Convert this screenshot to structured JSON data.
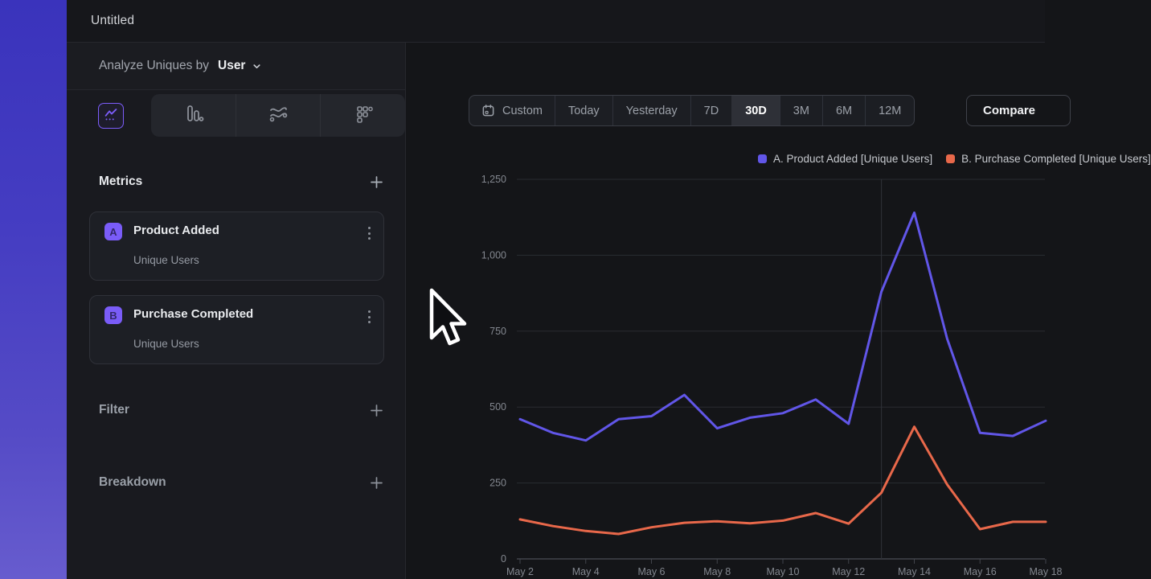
{
  "window": {
    "title": "Untitled"
  },
  "sidebar": {
    "analyze": {
      "label": "Analyze Uniques by",
      "value": "User"
    },
    "chart_type_tabs": [
      {
        "icon": "line-chart-icon",
        "selected": true
      },
      {
        "icon": "bar-chart-icon",
        "selected": false
      },
      {
        "icon": "flows-icon",
        "selected": false
      },
      {
        "icon": "retention-grid-icon",
        "selected": false
      }
    ],
    "metrics": {
      "heading": "Metrics",
      "items": [
        {
          "badge": "A",
          "name": "Product Added",
          "measure": "Unique Users"
        },
        {
          "badge": "B",
          "name": "Purchase Completed",
          "measure": "Unique Users"
        }
      ]
    },
    "filter": {
      "label": "Filter"
    },
    "breakdown": {
      "label": "Breakdown"
    }
  },
  "toolbar": {
    "ranges": [
      "Custom",
      "Today",
      "Yesterday",
      "7D",
      "30D",
      "3M",
      "6M",
      "12M"
    ],
    "selected_range": "30D",
    "compare_label": "Compare"
  },
  "chart_data": {
    "type": "line",
    "x": [
      "May 2",
      "May 3",
      "May 4",
      "May 5",
      "May 6",
      "May 7",
      "May 8",
      "May 9",
      "May 10",
      "May 11",
      "May 12",
      "May 13",
      "May 14",
      "May 15",
      "May 16",
      "May 17",
      "May 18"
    ],
    "series": [
      {
        "name": "A. Product Added [Unique Users]",
        "color": "#6156e8",
        "values": [
          460,
          415,
          390,
          460,
          470,
          540,
          430,
          465,
          480,
          525,
          445,
          880,
          1140,
          725,
          415,
          405,
          455
        ]
      },
      {
        "name": "B. Purchase Completed [Unique Users]",
        "color": "#e8684a",
        "values": [
          130,
          108,
          92,
          82,
          104,
          119,
          124,
          117,
          126,
          151,
          116,
          218,
          435,
          245,
          98,
          122,
          122
        ]
      }
    ],
    "ylim": [
      0,
      1250
    ],
    "yticks": [
      {
        "v": 0,
        "label": "0"
      },
      {
        "v": 250,
        "label": "250"
      },
      {
        "v": 500,
        "label": "500"
      },
      {
        "v": 750,
        "label": "750"
      },
      {
        "v": 1000,
        "label": "1,000"
      },
      {
        "v": 1250,
        "label": "1,250"
      }
    ],
    "xtick_indices": [
      0,
      2,
      4,
      6,
      8,
      10,
      12,
      14,
      16
    ],
    "vline_index": 11,
    "grid": true,
    "legend_position": "top-right"
  },
  "colors": {
    "accent_purple": "#7c5dfa",
    "series_a": "#6156e8",
    "series_b": "#e8684a",
    "selected_segment_bg": "#2e3037",
    "sidebar_bg": "#191a1f",
    "main_bg": "#141518"
  }
}
